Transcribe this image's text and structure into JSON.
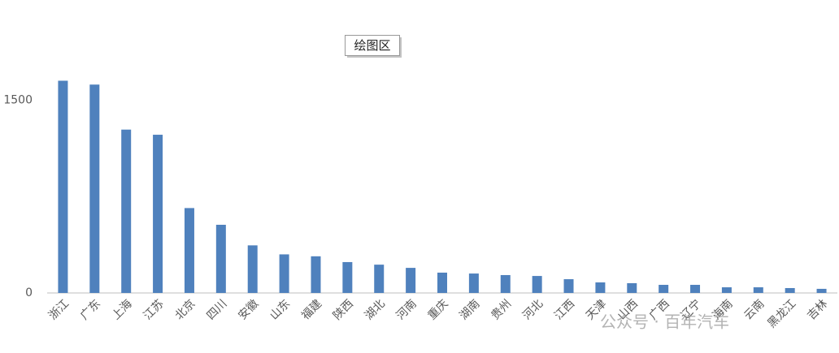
{
  "chart_data": {
    "type": "bar",
    "tooltip": "绘图区",
    "watermark": "公众号 · 百年汽车",
    "categories": [
      "浙江",
      "广东",
      "上海",
      "江苏",
      "北京",
      "四川",
      "安徽",
      "山东",
      "福建",
      "陕西",
      "湖北",
      "河南",
      "重庆",
      "湖南",
      "贵州",
      "河北",
      "江西",
      "天津",
      "山西",
      "广西",
      "辽宁",
      "海南",
      "云南",
      "黑龙江",
      "吉林"
    ],
    "values": [
      1650,
      1620,
      1270,
      1230,
      660,
      530,
      370,
      300,
      285,
      240,
      220,
      195,
      158,
      151,
      139,
      132,
      107,
      82,
      76,
      63,
      63,
      44,
      44,
      38,
      32
    ],
    "color": "#4f81bd",
    "ylim": [
      0,
      2000
    ],
    "yticks": [
      0,
      1500
    ],
    "grid": false
  }
}
